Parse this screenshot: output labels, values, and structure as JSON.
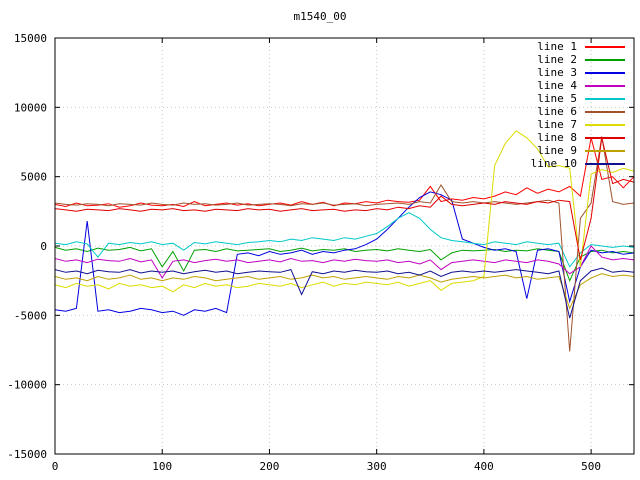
{
  "chart_data": {
    "type": "line",
    "title": "m1540_00",
    "xlabel": "",
    "ylabel": "",
    "x_range": [
      0,
      540
    ],
    "y_range": [
      -15000,
      15000
    ],
    "x_ticks": [
      0,
      100,
      200,
      300,
      400,
      500
    ],
    "y_ticks": [
      -15000,
      -10000,
      -5000,
      0,
      5000,
      10000,
      15000
    ],
    "grid": true,
    "legend_position": "top-right",
    "x_start": 0,
    "x_step": 10,
    "series": [
      {
        "name": "line 1",
        "color": "#ff0000",
        "values": [
          3000,
          2850,
          3100,
          2900,
          2950,
          3050,
          2800,
          2900,
          3100,
          2950,
          2900,
          3000,
          2850,
          3200,
          2900,
          3000,
          3100,
          2950,
          3050,
          2900,
          3000,
          3100,
          2950,
          3200,
          3000,
          3150,
          2900,
          3100,
          3050,
          3200,
          3100,
          3300,
          3200,
          3150,
          3300,
          4300,
          3200,
          3400,
          3300,
          3500,
          3400,
          3600,
          3900,
          3700,
          4200,
          3800,
          4100,
          3900,
          4300,
          3600,
          7800,
          4800,
          5000,
          4200,
          5000
        ]
      },
      {
        "name": "line 2",
        "color": "#00a000",
        "values": [
          -100,
          -300,
          -200,
          -400,
          -150,
          -300,
          -250,
          -100,
          -350,
          -200,
          -1500,
          -400,
          -1800,
          -300,
          -250,
          -400,
          -200,
          -350,
          -300,
          -250,
          -200,
          -400,
          -300,
          -150,
          -350,
          -250,
          -300,
          -200,
          -400,
          -300,
          -250,
          -350,
          -200,
          -300,
          -400,
          -250,
          -1000,
          -500,
          -300,
          -350,
          -300,
          -250,
          -400,
          -300,
          -350,
          -200,
          -300,
          -400,
          -2500,
          -800,
          -400,
          -300,
          -500,
          -400,
          -500
        ]
      },
      {
        "name": "line 3",
        "color": "#0000e0",
        "values": [
          -4600,
          -4700,
          -4500,
          1800,
          -4700,
          -4600,
          -4800,
          -4700,
          -4500,
          -4600,
          -4800,
          -4700,
          -5000,
          -4600,
          -4700,
          -4500,
          -4800,
          -600,
          -500,
          -700,
          -400,
          -600,
          -500,
          -300,
          -600,
          -400,
          -500,
          -300,
          -200,
          100,
          500,
          1200,
          2000,
          2800,
          3500,
          3900,
          3700,
          3300,
          500,
          200,
          -100,
          -300,
          -200,
          -400,
          -3800,
          -300,
          -200,
          -400,
          -4000,
          -1500,
          -300,
          -500,
          -400,
          -600,
          -500
        ]
      },
      {
        "name": "line 4",
        "color": "#c000c0",
        "values": [
          -900,
          -1100,
          -1000,
          -1200,
          -950,
          -1050,
          -1100,
          -900,
          -1150,
          -1000,
          -2300,
          -1100,
          -1000,
          -1200,
          -1050,
          -950,
          -1100,
          -1000,
          -1200,
          -1100,
          -1000,
          -1150,
          -900,
          -1100,
          -1050,
          -1200,
          -1000,
          -1100,
          -950,
          -1050,
          -1100,
          -1000,
          -1200,
          -1100,
          -1300,
          -1000,
          -1700,
          -1200,
          -1100,
          -1000,
          -1100,
          -1200,
          -1000,
          -1100,
          -1200,
          -1000,
          -1100,
          -1300,
          -2000,
          -1500,
          0,
          -800,
          -1000,
          -900,
          -1000
        ]
      },
      {
        "name": "line 5",
        "color": "#00c8c8",
        "values": [
          200,
          100,
          300,
          150,
          -800,
          200,
          100,
          250,
          150,
          300,
          100,
          200,
          -300,
          250,
          150,
          300,
          200,
          100,
          250,
          300,
          400,
          300,
          500,
          400,
          600,
          500,
          400,
          600,
          500,
          700,
          900,
          1400,
          2000,
          2400,
          2000,
          1200,
          600,
          400,
          300,
          200,
          100,
          300,
          200,
          100,
          300,
          200,
          100,
          200,
          -1500,
          -500,
          100,
          0,
          -100,
          0,
          -100
        ]
      },
      {
        "name": "line 6",
        "color": "#a0522d",
        "values": [
          3100,
          3000,
          2950,
          3050,
          3000,
          2900,
          3050,
          3000,
          2950,
          3100,
          3000,
          2950,
          3100,
          3000,
          3050,
          2950,
          3000,
          3100,
          2950,
          3000,
          3050,
          3000,
          2900,
          3050,
          3000,
          3100,
          2950,
          3000,
          3050,
          2900,
          3000,
          3050,
          3100,
          3000,
          3200,
          3100,
          4400,
          3200,
          3100,
          3200,
          3100,
          3200,
          3100,
          3000,
          3100,
          3200,
          3300,
          3100,
          -7600,
          2000,
          3100,
          7900,
          3200,
          3000,
          3100
        ]
      },
      {
        "name": "line 7",
        "color": "#dcdc00",
        "values": [
          -2800,
          -3000,
          -2700,
          -2900,
          -2800,
          -3100,
          -2700,
          -2900,
          -2800,
          -3000,
          -2900,
          -3300,
          -2800,
          -3000,
          -2700,
          -2900,
          -2800,
          -3000,
          -2900,
          -2700,
          -2800,
          -2900,
          -2700,
          -3000,
          -2800,
          -2600,
          -2900,
          -2700,
          -2800,
          -2600,
          -2700,
          -2800,
          -2600,
          -2900,
          -2700,
          -2500,
          -3200,
          -2700,
          -2600,
          -2500,
          -2200,
          5800,
          7400,
          8300,
          7800,
          7000,
          5700,
          5800,
          5600,
          -1500,
          5200,
          5500,
          5300,
          5600,
          5400
        ]
      },
      {
        "name": "line 8",
        "color": "#e00000",
        "values": [
          2700,
          2600,
          2500,
          2650,
          2600,
          2550,
          2700,
          2600,
          2500,
          2650,
          2600,
          2700,
          2550,
          2600,
          2500,
          2650,
          2600,
          2550,
          2700,
          2600,
          2650,
          2500,
          2600,
          2700,
          2550,
          2600,
          2650,
          2500,
          2600,
          2550,
          2700,
          2600,
          2800,
          2700,
          2900,
          2800,
          3600,
          3000,
          2900,
          3000,
          3100,
          3000,
          3200,
          3100,
          3000,
          3200,
          3100,
          3300,
          3200,
          -1000,
          2000,
          7800,
          4500,
          4800,
          4600
        ]
      },
      {
        "name": "line 9",
        "color": "#c0a000",
        "values": [
          -2200,
          -2400,
          -2300,
          -2500,
          -2200,
          -2400,
          -2300,
          -2100,
          -2400,
          -2300,
          -2500,
          -2300,
          -2400,
          -2200,
          -2300,
          -2500,
          -2400,
          -2300,
          -2200,
          -2400,
          -2300,
          -2200,
          -2400,
          -2300,
          -2100,
          -2300,
          -2200,
          -2400,
          -2300,
          -2200,
          -2300,
          -2400,
          -2200,
          -2300,
          -2100,
          -2300,
          -2600,
          -2400,
          -2300,
          -2200,
          -2300,
          -2200,
          -2100,
          -2300,
          -2200,
          -2400,
          -2300,
          -2200,
          -4500,
          -2800,
          -2300,
          -2000,
          -2200,
          -2100,
          -2200
        ]
      },
      {
        "name": "line 10",
        "color": "#101090",
        "values": [
          -1700,
          -1900,
          -1800,
          -2000,
          -1750,
          -1850,
          -1900,
          -1700,
          -1950,
          -1800,
          -1900,
          -1800,
          -2000,
          -1850,
          -1750,
          -1900,
          -1800,
          -2000,
          -1900,
          -1800,
          -1850,
          -1900,
          -1700,
          -3500,
          -1850,
          -2000,
          -1800,
          -1900,
          -1750,
          -1850,
          -1900,
          -1800,
          -2000,
          -1900,
          -2100,
          -1800,
          -2200,
          -1900,
          -1800,
          -1900,
          -1800,
          -1900,
          -1800,
          -1700,
          -1800,
          -1900,
          -2000,
          -1800,
          -5200,
          -2500,
          -1800,
          -1600,
          -1900,
          -1800,
          -1900
        ]
      }
    ],
    "style": {
      "grid_color": "#c8c8c8",
      "border_color": "#000000",
      "background": "#ffffff",
      "text_color": "#000000"
    }
  }
}
